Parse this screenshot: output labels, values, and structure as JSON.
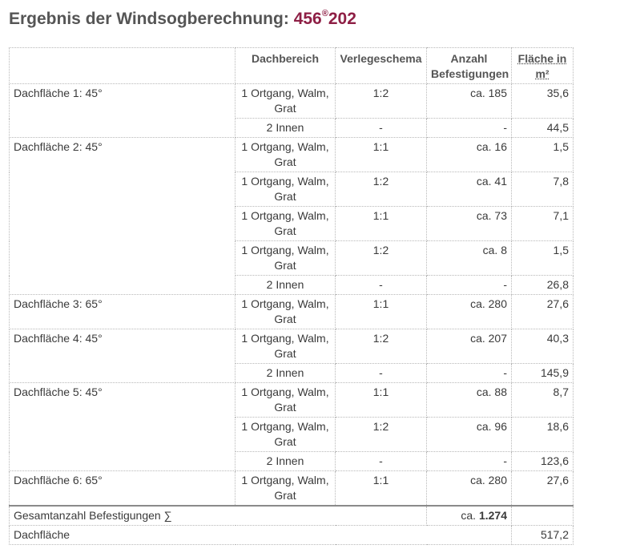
{
  "title": {
    "text": "Ergebnis der Windsogberechnung:",
    "code_main": "456",
    "code_sup": "®",
    "code_tail": "202"
  },
  "table": {
    "headers": {
      "dachflaeche": "",
      "dachbereich": "Dachbereich",
      "verlegeschema": "Verlegeschema",
      "anzahl": "Anzahl Befestigungen",
      "flaeche": "Fläche in m²"
    },
    "groups": [
      {
        "label": "Dachfläche 1: 45°",
        "rows": [
          {
            "bereich": "1 Ortgang, Walm, Grat",
            "schema": "1:2",
            "anzahl": "ca. 185",
            "flaeche": "35,6"
          },
          {
            "bereich": "2 Innen",
            "schema": "-",
            "anzahl": "-",
            "flaeche": "44,5"
          }
        ]
      },
      {
        "label": "Dachfläche 2: 45°",
        "rows": [
          {
            "bereich": "1 Ortgang, Walm, Grat",
            "schema": "1:1",
            "anzahl": "ca. 16",
            "flaeche": "1,5"
          },
          {
            "bereich": "1 Ortgang, Walm, Grat",
            "schema": "1:2",
            "anzahl": "ca. 41",
            "flaeche": "7,8"
          },
          {
            "bereich": "1 Ortgang, Walm, Grat",
            "schema": "1:1",
            "anzahl": "ca. 73",
            "flaeche": "7,1"
          },
          {
            "bereich": "1 Ortgang, Walm, Grat",
            "schema": "1:2",
            "anzahl": "ca. 8",
            "flaeche": "1,5"
          },
          {
            "bereich": "2 Innen",
            "schema": "-",
            "anzahl": "-",
            "flaeche": "26,8"
          }
        ]
      },
      {
        "label": "Dachfläche 3: 65°",
        "rows": [
          {
            "bereich": "1 Ortgang, Walm, Grat",
            "schema": "1:1",
            "anzahl": "ca. 280",
            "flaeche": "27,6"
          }
        ]
      },
      {
        "label": "Dachfläche 4: 45°",
        "rows": [
          {
            "bereich": "1 Ortgang, Walm, Grat",
            "schema": "1:2",
            "anzahl": "ca. 207",
            "flaeche": "40,3"
          },
          {
            "bereich": "2 Innen",
            "schema": "-",
            "anzahl": "-",
            "flaeche": "145,9"
          }
        ]
      },
      {
        "label": "Dachfläche 5: 45°",
        "rows": [
          {
            "bereich": "1 Ortgang, Walm, Grat",
            "schema": "1:1",
            "anzahl": "ca. 88",
            "flaeche": "8,7"
          },
          {
            "bereich": "1 Ortgang, Walm, Grat",
            "schema": "1:2",
            "anzahl": "ca. 96",
            "flaeche": "18,6"
          },
          {
            "bereich": "2 Innen",
            "schema": "-",
            "anzahl": "-",
            "flaeche": "123,6"
          }
        ]
      },
      {
        "label": "Dachfläche 6: 65°",
        "rows": [
          {
            "bereich": "1 Ortgang, Walm, Grat",
            "schema": "1:1",
            "anzahl": "ca. 280",
            "flaeche": "27,6"
          }
        ]
      }
    ],
    "summary": {
      "total_label": "Gesamtanzahl Befestigungen ∑",
      "total_prefix": "ca.",
      "total_value": "1.274",
      "area_label": "Dachfläche",
      "area_value": "517,2"
    }
  }
}
